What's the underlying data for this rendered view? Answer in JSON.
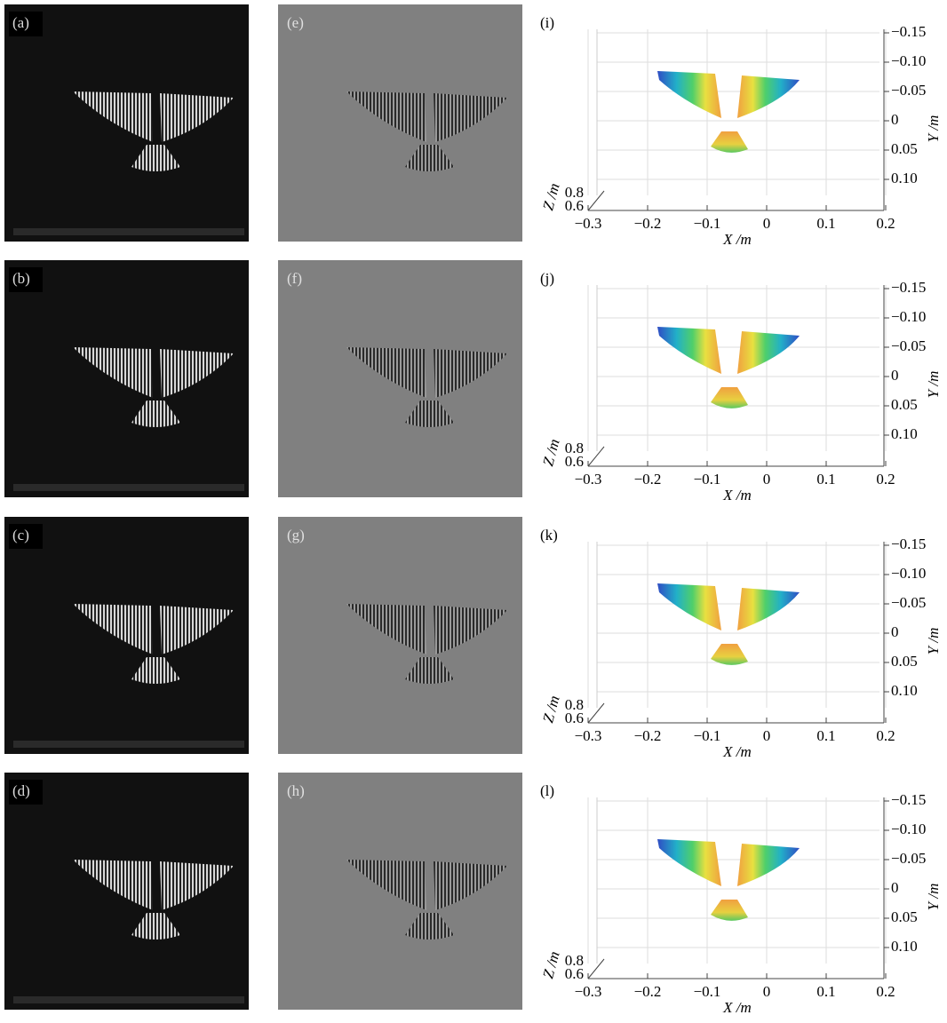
{
  "photos": [
    {
      "label": "(a)"
    },
    {
      "label": "(b)"
    },
    {
      "label": "(c)"
    },
    {
      "label": "(d)"
    }
  ],
  "fringes": [
    {
      "label": "(e)"
    },
    {
      "label": "(f)"
    },
    {
      "label": "(g)"
    },
    {
      "label": "(h)"
    }
  ],
  "plots": [
    {
      "label": "(i)"
    },
    {
      "label": "(j)"
    },
    {
      "label": "(k)"
    },
    {
      "label": "(l)"
    }
  ],
  "plot_axes": {
    "x_label": "X /m",
    "y_label": "Y /m",
    "z_label": "Z /m",
    "xticks": [
      {
        "value": -0.3,
        "label": "−0.3"
      },
      {
        "value": -0.2,
        "label": "−0.2"
      },
      {
        "value": -0.1,
        "label": "−0.1"
      },
      0,
      0.1,
      0.2
    ],
    "yticks": [
      {
        "value": -0.15,
        "label": "−0.15"
      },
      {
        "value": -0.1,
        "label": "−0.10"
      },
      {
        "value": -0.05,
        "label": "−0.05"
      },
      0,
      0.05,
      {
        "value": 0.1,
        "label": "0.10"
      }
    ],
    "zticks": [
      0.8,
      0.6
    ]
  }
}
